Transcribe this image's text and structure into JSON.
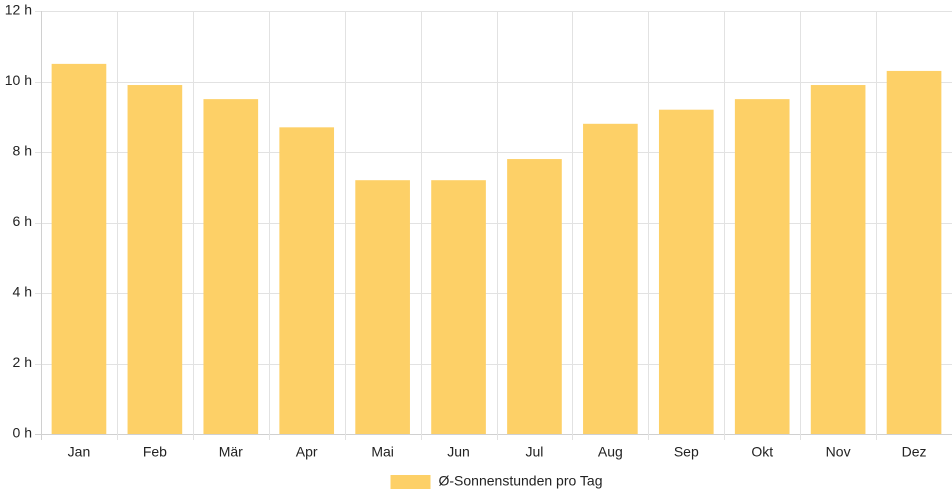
{
  "chart_data": {
    "type": "bar",
    "categories": [
      "Jan",
      "Feb",
      "Mär",
      "Apr",
      "Mai",
      "Jun",
      "Jul",
      "Aug",
      "Sep",
      "Okt",
      "Nov",
      "Dez"
    ],
    "series": [
      {
        "name": "Ø-Sonnenstunden pro Tag",
        "values": [
          10.5,
          9.9,
          9.5,
          8.7,
          7.2,
          7.2,
          7.8,
          8.8,
          9.2,
          9.5,
          9.9,
          10.3
        ],
        "color": "#fdd067"
      }
    ],
    "title": "",
    "xlabel": "",
    "ylabel": "",
    "ylim": [
      0,
      12
    ],
    "yticks": [
      0,
      2,
      4,
      6,
      8,
      10,
      12
    ],
    "ytick_labels": [
      "0 h",
      "2 h",
      "4 h",
      "6 h",
      "8 h",
      "10 h",
      "12 h"
    ],
    "grid": true,
    "legend_position": "bottom"
  }
}
